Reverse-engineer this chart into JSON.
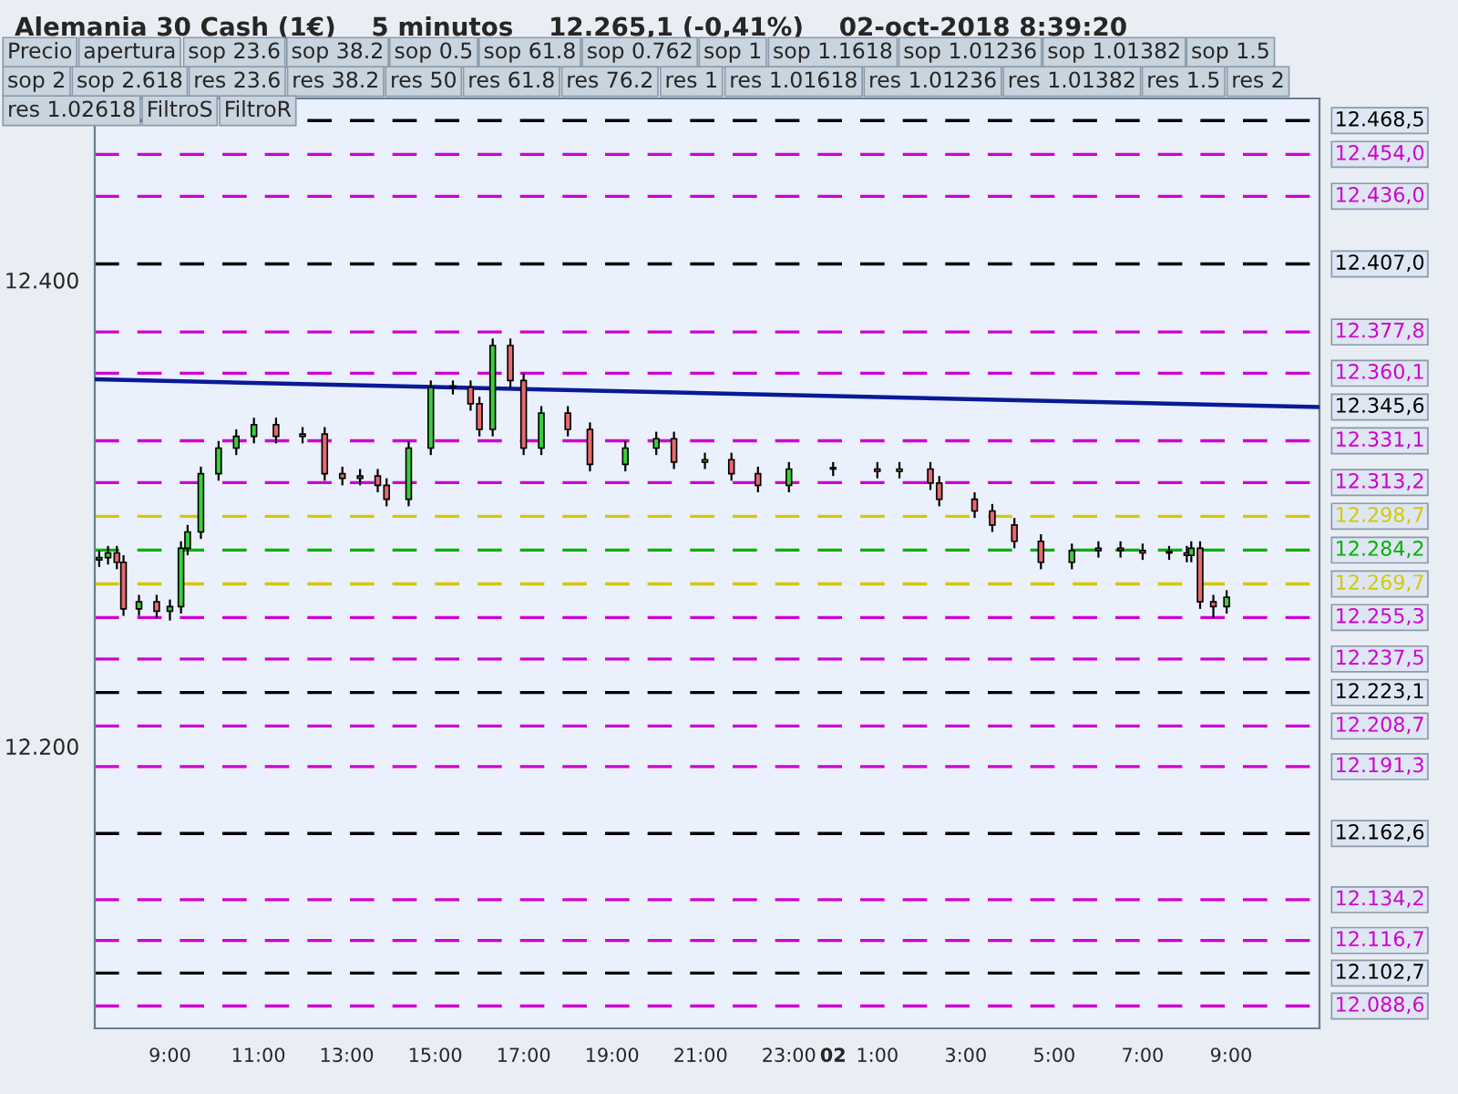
{
  "chart_data": {
    "type": "candlestick",
    "title": "Alemania 30 Cash (1€)    5 minutos    12.265,1 (-0,41%)    02-oct-2018 8:39:20",
    "x": [
      "2018-10-01T07:24",
      "2018-10-01T07:36",
      "2018-10-01T07:48",
      "2018-10-01T07:57",
      "2018-10-01T08:18",
      "2018-10-01T08:42",
      "2018-10-01T09:00",
      "2018-10-01T09:15",
      "2018-10-01T09:24",
      "2018-10-01T09:42",
      "2018-10-01T10:06",
      "2018-10-01T10:30",
      "2018-10-01T10:54",
      "2018-10-01T11:24",
      "2018-10-01T12:00",
      "2018-10-01T12:30",
      "2018-10-01T12:54",
      "2018-10-01T13:18",
      "2018-10-01T13:42",
      "2018-10-01T13:54",
      "2018-10-01T14:24",
      "2018-10-01T14:54",
      "2018-10-01T15:24",
      "2018-10-01T15:48",
      "2018-10-01T16:00",
      "2018-10-01T16:18",
      "2018-10-01T16:42",
      "2018-10-01T17:00",
      "2018-10-01T17:24",
      "2018-10-01T18:00",
      "2018-10-01T18:30",
      "2018-10-01T19:18",
      "2018-10-01T20:00",
      "2018-10-01T20:24",
      "2018-10-01T21:06",
      "2018-10-01T21:42",
      "2018-10-01T22:18",
      "2018-10-01T23:00",
      "2018-10-02T00:00",
      "2018-10-02T01:00",
      "2018-10-02T01:30",
      "2018-10-02T02:12",
      "2018-10-02T02:24",
      "2018-10-02T03:12",
      "2018-10-02T03:36",
      "2018-10-02T04:06",
      "2018-10-02T04:42",
      "2018-10-02T05:24",
      "2018-10-02T06:00",
      "2018-10-02T06:30",
      "2018-10-02T07:00",
      "2018-10-02T07:36",
      "2018-10-02T08:00",
      "2018-10-02T08:06",
      "2018-10-02T08:18",
      "2018-10-02T08:36",
      "2018-10-02T08:54"
    ],
    "ohlc": [
      [
        12280,
        12284,
        12277,
        12281
      ],
      [
        12281,
        12286,
        12278,
        12283
      ],
      [
        12283,
        12286,
        12276,
        12279
      ],
      [
        12279,
        12282,
        12256,
        12259
      ],
      [
        12259,
        12265,
        12256,
        12262
      ],
      [
        12262,
        12265,
        12255,
        12258
      ],
      [
        12258,
        12263,
        12254,
        12260
      ],
      [
        12260,
        12288,
        12257,
        12285
      ],
      [
        12285,
        12295,
        12282,
        12292
      ],
      [
        12292,
        12320,
        12289,
        12317
      ],
      [
        12317,
        12331,
        12314,
        12328
      ],
      [
        12328,
        12336,
        12325,
        12333
      ],
      [
        12333,
        12341,
        12330,
        12338
      ],
      [
        12338,
        12341,
        12330,
        12333
      ],
      [
        12333,
        12337,
        12330,
        12334
      ],
      [
        12334,
        12337,
        12314,
        12317
      ],
      [
        12317,
        12320,
        12312,
        12315
      ],
      [
        12315,
        12319,
        12312,
        12316
      ],
      [
        12316,
        12319,
        12309,
        12312
      ],
      [
        12312,
        12315,
        12303,
        12306
      ],
      [
        12306,
        12331,
        12303,
        12328
      ],
      [
        12328,
        12357,
        12325,
        12354
      ],
      [
        12354,
        12357,
        12351,
        12354
      ],
      [
        12354,
        12357,
        12344,
        12347
      ],
      [
        12347,
        12350,
        12333,
        12336
      ],
      [
        12336,
        12375,
        12333,
        12372
      ],
      [
        12372,
        12375,
        12354,
        12357
      ],
      [
        12357,
        12360,
        12325,
        12328
      ],
      [
        12328,
        12346,
        12325,
        12343
      ],
      [
        12343,
        12346,
        12333,
        12336
      ],
      [
        12336,
        12339,
        12318,
        12321
      ],
      [
        12321,
        12331,
        12318,
        12328
      ],
      [
        12328,
        12335,
        12325,
        12332
      ],
      [
        12332,
        12335,
        12319,
        12322
      ],
      [
        12322,
        12326,
        12319,
        12323
      ],
      [
        12323,
        12326,
        12314,
        12317
      ],
      [
        12317,
        12320,
        12309,
        12312
      ],
      [
        12312,
        12322,
        12309,
        12319
      ],
      [
        12319,
        12322,
        12316,
        12319
      ],
      [
        12319,
        12322,
        12315,
        12318
      ],
      [
        12318,
        12322,
        12315,
        12319
      ],
      [
        12319,
        12322,
        12310,
        12313
      ],
      [
        12313,
        12316,
        12303,
        12306
      ],
      [
        12306,
        12309,
        12298,
        12301
      ],
      [
        12301,
        12304,
        12292,
        12295
      ],
      [
        12295,
        12298,
        12285,
        12288
      ],
      [
        12288,
        12291,
        12276,
        12279
      ],
      [
        12279,
        12287,
        12276,
        12284
      ],
      [
        12284,
        12288,
        12281,
        12285
      ],
      [
        12285,
        12288,
        12281,
        12284
      ],
      [
        12284,
        12287,
        12280,
        12283
      ],
      [
        12283,
        12286,
        12280,
        12283
      ],
      [
        12283,
        12286,
        12279,
        12282
      ],
      [
        12282,
        12288,
        12279,
        12285
      ],
      [
        12285,
        12288,
        12259,
        12262
      ],
      [
        12262,
        12265,
        12255,
        12260
      ],
      [
        12260,
        12267,
        12257,
        12264
      ]
    ],
    "series": [
      {
        "type": "line",
        "color": "#0a1a96",
        "x": [
          "2018-10-01T07:18",
          "2018-10-02T11:00"
        ],
        "values": [
          12357.5,
          12345.6
        ]
      }
    ],
    "xlim": [
      "2018-10-01T07:18",
      "2018-10-02T11:00"
    ],
    "xticks": [
      {
        "value": "2018-10-01T09:00",
        "label": "9:00"
      },
      {
        "value": "2018-10-01T11:00",
        "label": "11:00"
      },
      {
        "value": "2018-10-01T13:00",
        "label": "13:00"
      },
      {
        "value": "2018-10-01T15:00",
        "label": "15:00"
      },
      {
        "value": "2018-10-01T17:00",
        "label": "17:00"
      },
      {
        "value": "2018-10-01T19:00",
        "label": "19:00"
      },
      {
        "value": "2018-10-01T21:00",
        "label": "21:00"
      },
      {
        "value": "2018-10-01T23:00",
        "label": "23:00"
      },
      {
        "value": "2018-10-02T00:00",
        "label": "02"
      },
      {
        "value": "2018-10-02T01:00",
        "label": "1:00"
      },
      {
        "value": "2018-10-02T03:00",
        "label": "3:00"
      },
      {
        "value": "2018-10-02T05:00",
        "label": "5:00"
      },
      {
        "value": "2018-10-02T07:00",
        "label": "7:00"
      },
      {
        "value": "2018-10-02T09:00",
        "label": "9:00"
      }
    ],
    "ylim": [
      12079,
      12478
    ],
    "yticks": [
      {
        "value": 12400,
        "label": "12.400"
      },
      {
        "value": 12200,
        "label": "12.200"
      }
    ],
    "grid": false,
    "ref_lines": [
      {
        "axis": "y",
        "value": 12468.5,
        "label": "12.468,5",
        "color": "#000000",
        "line_style": "dashed"
      },
      {
        "axis": "y",
        "value": 12454.0,
        "label": "12.454,0",
        "color": "#d000d0",
        "line_style": "dashed"
      },
      {
        "axis": "y",
        "value": 12436.0,
        "label": "12.436,0",
        "color": "#d000d0",
        "line_style": "dashed"
      },
      {
        "axis": "y",
        "value": 12407.0,
        "label": "12.407,0",
        "color": "#000000",
        "line_style": "dashed"
      },
      {
        "axis": "y",
        "value": 12377.8,
        "label": "12.377,8",
        "color": "#d000d0",
        "line_style": "dashed"
      },
      {
        "axis": "y",
        "value": 12360.1,
        "label": "12.360,1",
        "color": "#d000d0",
        "line_style": "dashed"
      },
      {
        "axis": "y",
        "value": 12331.1,
        "label": "12.331,1",
        "color": "#d000d0",
        "line_style": "dashed"
      },
      {
        "axis": "y",
        "value": 12313.2,
        "label": "12.313,2",
        "color": "#d000d0",
        "line_style": "dashed"
      },
      {
        "axis": "y",
        "value": 12298.7,
        "label": "12.298,7",
        "color": "#d4c800",
        "line_style": "dashed"
      },
      {
        "axis": "y",
        "value": 12284.2,
        "label": "12.284,2",
        "color": "#00b000",
        "line_style": "dashed"
      },
      {
        "axis": "y",
        "value": 12269.7,
        "label": "12.269,7",
        "color": "#d4c800",
        "line_style": "dashed"
      },
      {
        "axis": "y",
        "value": 12255.3,
        "label": "12.255,3",
        "color": "#d000d0",
        "line_style": "dashed"
      },
      {
        "axis": "y",
        "value": 12237.5,
        "label": "12.237,5",
        "color": "#d000d0",
        "line_style": "dashed"
      },
      {
        "axis": "y",
        "value": 12223.1,
        "label": "12.223,1",
        "color": "#000000",
        "line_style": "dashed"
      },
      {
        "axis": "y",
        "value": 12208.7,
        "label": "12.208,7",
        "color": "#d000d0",
        "line_style": "dashed"
      },
      {
        "axis": "y",
        "value": 12191.3,
        "label": "12.191,3",
        "color": "#d000d0",
        "line_style": "dashed"
      },
      {
        "axis": "y",
        "value": 12162.6,
        "label": "12.162,6",
        "color": "#000000",
        "line_style": "dashed"
      },
      {
        "axis": "y",
        "value": 12134.2,
        "label": "12.134,2",
        "color": "#d000d0",
        "line_style": "dashed"
      },
      {
        "axis": "y",
        "value": 12116.7,
        "label": "12.116,7",
        "color": "#d000d0",
        "line_style": "dashed"
      },
      {
        "axis": "y",
        "value": 12102.7,
        "label": "12.102,7",
        "color": "#000000",
        "line_style": "dashed"
      },
      {
        "axis": "y",
        "value": 12088.6,
        "label": "12.088,6",
        "color": "#d000d0",
        "line_style": "dashed"
      }
    ],
    "annotations": [
      "Precio",
      "apertura",
      "sop 23.6",
      "sop 38.2",
      "sop 0.5",
      "sop 61.8",
      "sop 0.762",
      "sop 1",
      "sop 1.1618",
      "sop 1.01236",
      "sop 1.01382",
      "sop 1.5",
      "sop 2",
      "sop 2.618",
      "res 23.6",
      "res 38.2",
      "res 50",
      "res 61.8",
      "res 76.2",
      "res 1",
      "res 1.01618",
      "res 1.01236",
      "res 1.01382",
      "res 1.5",
      "res 2",
      "res 1.02618",
      "FiltroS",
      "FiltroR",
      {
        "text": "12.345,6",
        "x": "2018-10-02T11:00",
        "y": 12345.6
      }
    ]
  }
}
